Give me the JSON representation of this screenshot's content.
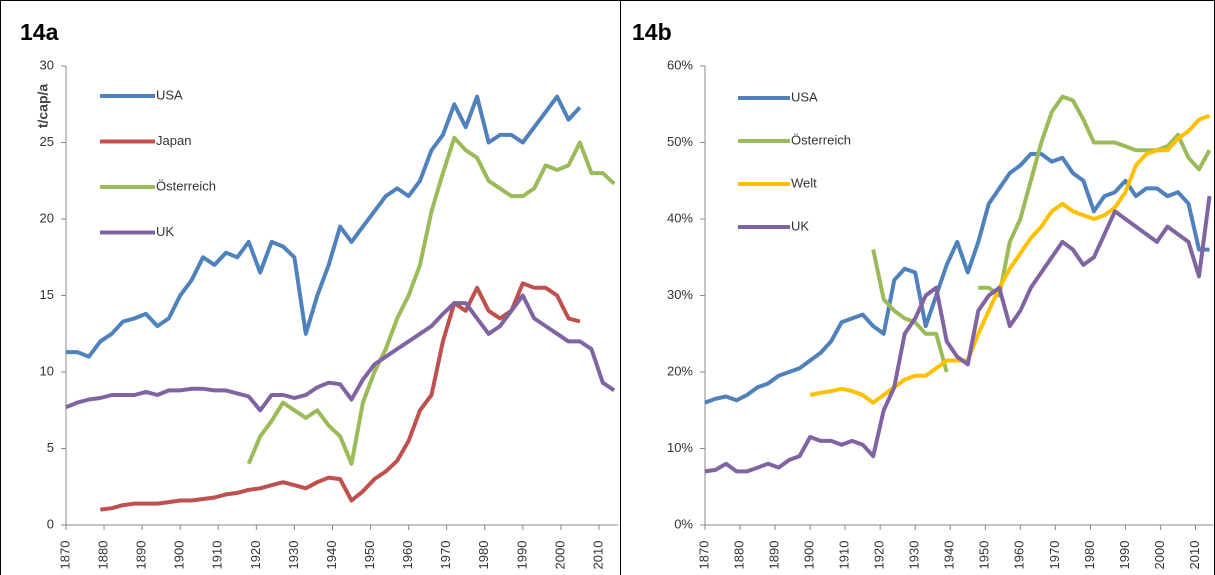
{
  "chart_data": [
    {
      "type": "line",
      "title": "14a",
      "y_label": "t/cap/a",
      "x": [
        1870,
        1873,
        1876,
        1879,
        1882,
        1885,
        1888,
        1891,
        1894,
        1897,
        1900,
        1903,
        1906,
        1909,
        1912,
        1915,
        1918,
        1921,
        1924,
        1927,
        1930,
        1933,
        1936,
        1939,
        1942,
        1945,
        1948,
        1951,
        1954,
        1957,
        1960,
        1963,
        1966,
        1969,
        1972,
        1975,
        1978,
        1981,
        1984,
        1987,
        1990,
        1993,
        1996,
        1999,
        2002,
        2005,
        2008,
        2011,
        2014
      ],
      "xlim": [
        1870,
        2015
      ],
      "xticks": [
        1870,
        1880,
        1890,
        1900,
        1910,
        1920,
        1930,
        1940,
        1950,
        1960,
        1970,
        1980,
        1990,
        2000,
        2010
      ],
      "ylim": [
        0,
        30
      ],
      "yticks": [
        0,
        5,
        10,
        15,
        20,
        25,
        30
      ],
      "grid": false,
      "series": [
        {
          "name": "USA",
          "color": "#4f81bd",
          "values": [
            11.3,
            11.3,
            11.0,
            12.0,
            12.5,
            13.3,
            13.5,
            13.8,
            13.0,
            13.5,
            15,
            16,
            17.5,
            17,
            17.8,
            17.5,
            18.5,
            16.5,
            18.5,
            18.2,
            17.5,
            12.5,
            15,
            17,
            19.5,
            18.5,
            19.5,
            20.5,
            21.5,
            22,
            21.5,
            22.5,
            24.5,
            25.5,
            27.5,
            26,
            28,
            25,
            25.5,
            25.5,
            25,
            26,
            27,
            28,
            26.5,
            27.3,
            null,
            null,
            null
          ]
        },
        {
          "name": "Japan",
          "color": "#c0504d",
          "values": [
            null,
            null,
            null,
            1.0,
            1.1,
            1.3,
            1.4,
            1.4,
            1.4,
            1.5,
            1.6,
            1.6,
            1.7,
            1.8,
            2.0,
            2.1,
            2.3,
            2.4,
            2.6,
            2.8,
            2.6,
            2.4,
            2.8,
            3.1,
            3.0,
            1.6,
            2.2,
            3.0,
            3.5,
            4.2,
            5.5,
            7.5,
            8.5,
            12,
            14.5,
            14,
            15.5,
            14,
            13.5,
            14,
            15.8,
            15.5,
            15.5,
            15,
            13.5,
            13.3,
            null,
            null,
            null
          ]
        },
        {
          "name": "Österreich",
          "color": "#9bbb59",
          "values": [
            null,
            null,
            null,
            null,
            null,
            null,
            null,
            null,
            null,
            null,
            null,
            null,
            null,
            null,
            null,
            null,
            4.0,
            5.8,
            6.8,
            8.0,
            7.5,
            7.0,
            7.5,
            6.5,
            5.8,
            4.0,
            8.0,
            10,
            11.5,
            13.5,
            15,
            17,
            20.5,
            23,
            25.3,
            24.5,
            24,
            22.5,
            22,
            21.5,
            21.5,
            22,
            23.5,
            23.2,
            23.5,
            25,
            23,
            23,
            22.3
          ]
        },
        {
          "name": "UK",
          "color": "#8064a2",
          "values": [
            7.7,
            8.0,
            8.2,
            8.3,
            8.5,
            8.5,
            8.5,
            8.7,
            8.5,
            8.8,
            8.8,
            8.9,
            8.9,
            8.8,
            8.8,
            8.6,
            8.4,
            7.5,
            8.5,
            8.5,
            8.3,
            8.5,
            9.0,
            9.3,
            9.2,
            8.2,
            9.5,
            10.5,
            11,
            11.5,
            12,
            12.5,
            13,
            13.8,
            14.5,
            14.5,
            13.5,
            12.5,
            13,
            14,
            15,
            13.5,
            13,
            12.5,
            12,
            12,
            11.5,
            9.3,
            8.8
          ]
        }
      ]
    },
    {
      "type": "line",
      "title": "14b",
      "x": [
        1870,
        1873,
        1876,
        1879,
        1882,
        1885,
        1888,
        1891,
        1894,
        1897,
        1900,
        1903,
        1906,
        1909,
        1912,
        1915,
        1918,
        1921,
        1924,
        1927,
        1930,
        1933,
        1936,
        1939,
        1942,
        1945,
        1948,
        1951,
        1954,
        1957,
        1960,
        1963,
        1966,
        1969,
        1972,
        1975,
        1978,
        1981,
        1984,
        1987,
        1990,
        1993,
        1996,
        1999,
        2002,
        2005,
        2008,
        2011,
        2014
      ],
      "xlim": [
        1870,
        2015
      ],
      "xticks": [
        1870,
        1880,
        1890,
        1900,
        1910,
        1920,
        1930,
        1940,
        1950,
        1960,
        1970,
        1980,
        1990,
        2000,
        2010
      ],
      "ylim": [
        0,
        60
      ],
      "yticks": [
        {
          "value": 0,
          "label": "0%"
        },
        {
          "value": 10,
          "label": "10%"
        },
        {
          "value": 20,
          "label": "20%"
        },
        {
          "value": 30,
          "label": "30%"
        },
        {
          "value": 40,
          "label": "40%"
        },
        {
          "value": 50,
          "label": "50%"
        },
        {
          "value": 60,
          "label": "60%"
        }
      ],
      "grid": false,
      "series": [
        {
          "name": "USA",
          "color": "#4f81bd",
          "values": [
            16,
            16.5,
            16.8,
            16.3,
            17,
            18,
            18.5,
            19.5,
            20,
            20.5,
            21.5,
            22.5,
            24,
            26.5,
            27,
            27.5,
            26,
            25,
            32,
            33.5,
            33,
            26,
            30,
            34,
            37,
            33,
            37,
            42,
            44,
            46,
            47,
            48.5,
            48.5,
            47.5,
            48,
            46,
            45,
            41,
            43,
            43.5,
            45,
            43,
            44,
            44,
            43,
            43.5,
            42,
            36,
            36
          ]
        },
        {
          "name": "Österreich",
          "color": "#9bbb59",
          "values": [
            null,
            null,
            null,
            null,
            null,
            null,
            null,
            null,
            null,
            null,
            null,
            null,
            null,
            null,
            null,
            null,
            36,
            29.5,
            28,
            27,
            26.5,
            25,
            25,
            20,
            null,
            null,
            31,
            31,
            30,
            37,
            40,
            45,
            50,
            54,
            56,
            55.5,
            53,
            50,
            50,
            50,
            49.5,
            49,
            49,
            49,
            49.5,
            51,
            48,
            46.5,
            49
          ]
        },
        {
          "name": "Welt",
          "color": "#ffc000",
          "values": [
            null,
            null,
            null,
            null,
            null,
            null,
            null,
            null,
            null,
            null,
            17,
            17.3,
            17.5,
            17.8,
            17.5,
            17,
            16,
            17,
            18,
            19,
            19.5,
            19.5,
            20.5,
            21.5,
            21.5,
            21.5,
            25,
            28,
            31,
            33.5,
            35.5,
            37.5,
            39,
            41,
            42,
            41,
            40.5,
            40,
            40.5,
            41.5,
            43.5,
            47,
            48.5,
            49,
            49,
            50.5,
            51.5,
            53,
            53.5
          ]
        },
        {
          "name": "UK",
          "color": "#8064a2",
          "values": [
            7,
            7.2,
            8,
            7,
            7,
            7.5,
            8,
            7.5,
            8.5,
            9,
            11.5,
            11,
            11,
            10.5,
            11,
            10.5,
            9,
            15,
            18,
            25,
            27,
            30,
            31,
            24,
            22,
            21,
            28,
            30,
            31,
            26,
            28,
            31,
            33,
            35,
            37,
            36,
            34,
            35,
            38,
            41,
            40,
            39,
            38,
            37,
            39,
            38,
            37,
            32.5,
            43
          ]
        }
      ]
    }
  ]
}
